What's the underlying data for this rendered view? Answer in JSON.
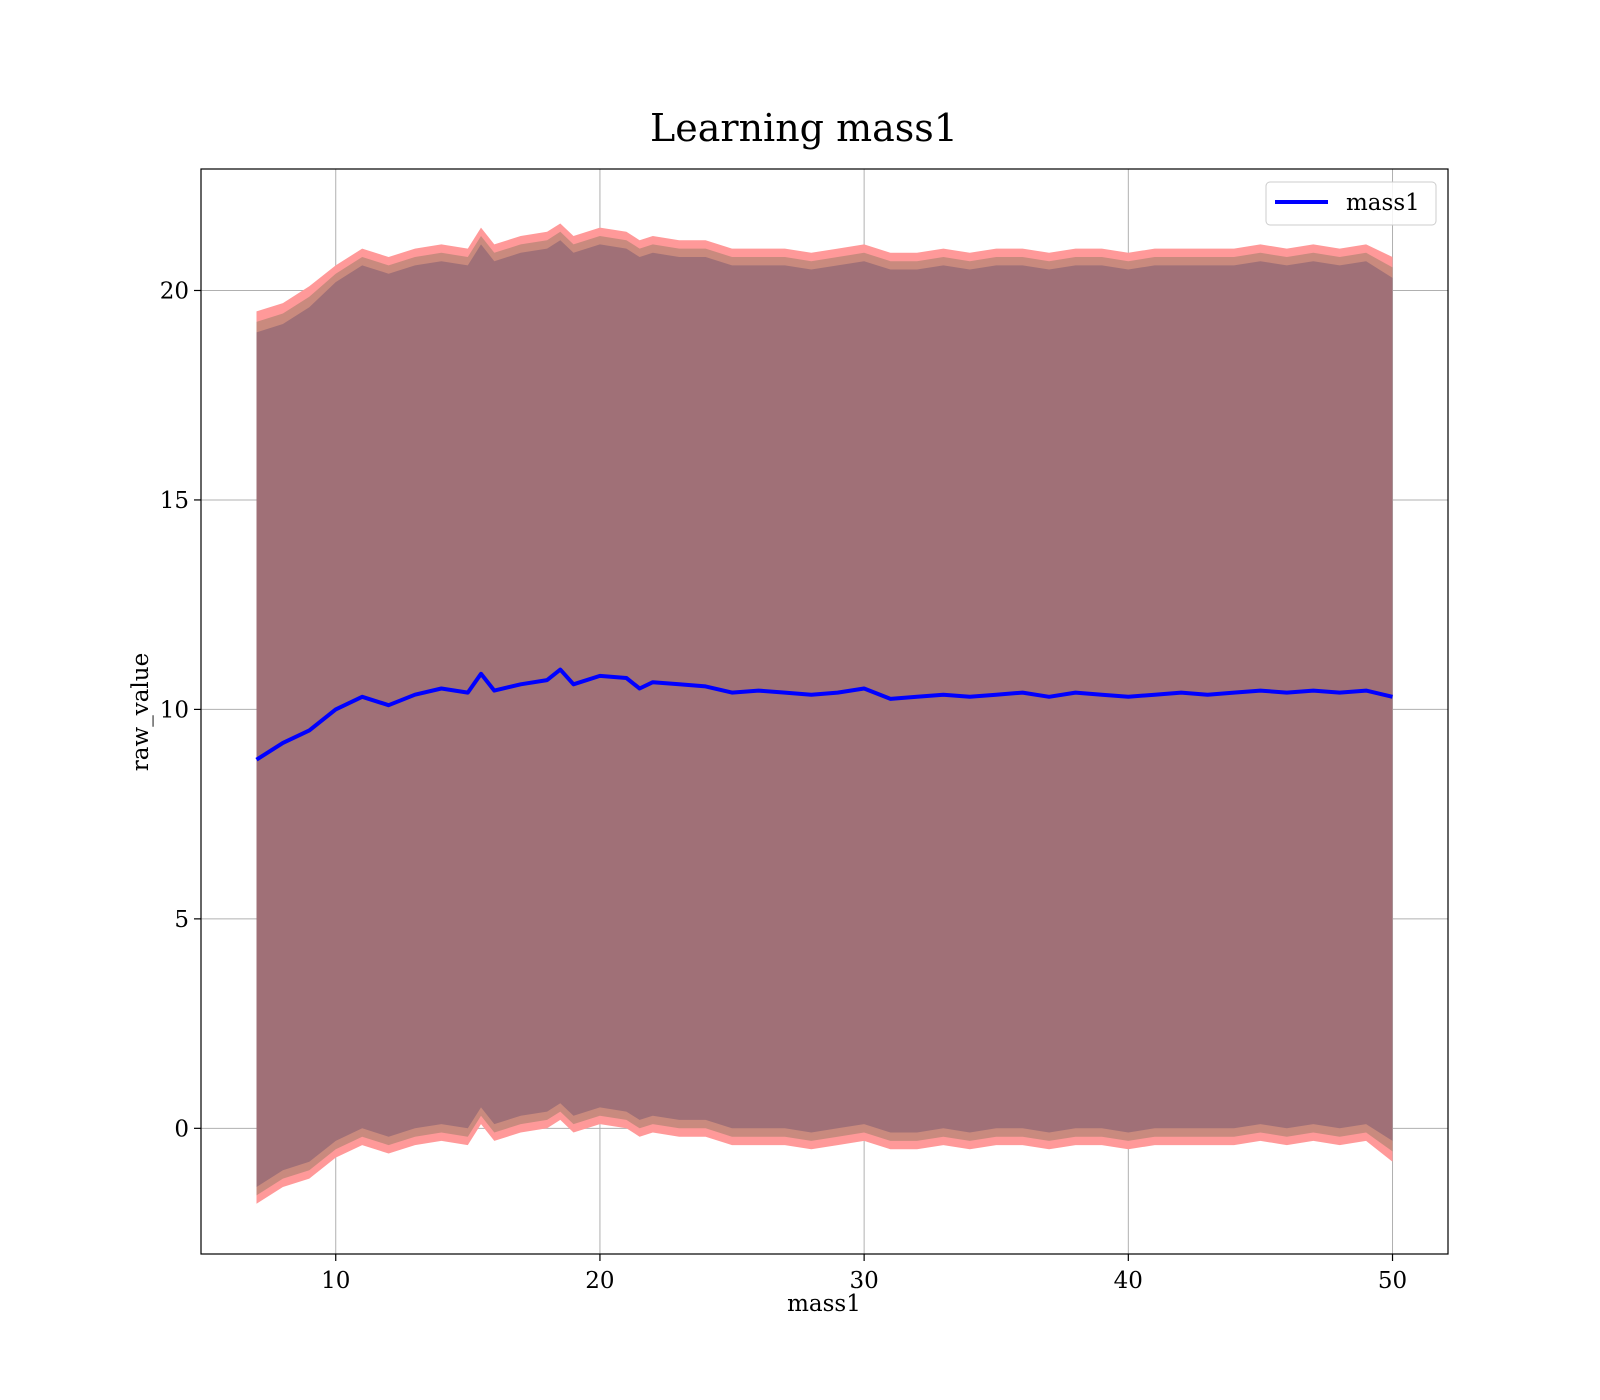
{
  "chart_data": {
    "type": "line",
    "title": "Learning mass1",
    "xlabel": "mass1",
    "ylabel": "raw_value",
    "xlim": [
      4.9,
      52.1
    ],
    "ylim": [
      -3.0,
      22.9
    ],
    "xticks": [
      10,
      20,
      30,
      40,
      50
    ],
    "yticks": [
      0,
      5,
      10,
      15,
      20
    ],
    "grid": true,
    "legend": {
      "placement": "top-right",
      "entries": [
        "mass1"
      ]
    },
    "colors": {
      "line": "#0000ff",
      "band_outer": "#ff9999",
      "band_middle": "#c98a7e",
      "band_inner": "#a07077",
      "grid": "#b0b0b0"
    },
    "series": [
      {
        "name": "mass1",
        "x": [
          7.0,
          8.0,
          9.0,
          10.0,
          11.0,
          12.0,
          13.0,
          14.0,
          15.0,
          15.5,
          16.0,
          17.0,
          18.0,
          18.5,
          19.0,
          20.0,
          21.0,
          21.5,
          22.0,
          23.0,
          24.0,
          25.0,
          26.0,
          27.0,
          28.0,
          29.0,
          30.0,
          31.0,
          32.0,
          33.0,
          34.0,
          35.0,
          36.0,
          37.0,
          38.0,
          39.0,
          40.0,
          41.0,
          42.0,
          43.0,
          44.0,
          45.0,
          46.0,
          47.0,
          48.0,
          49.0,
          50.0
        ],
        "y": [
          8.8,
          9.2,
          9.5,
          10.0,
          10.3,
          10.1,
          10.35,
          10.5,
          10.4,
          10.85,
          10.45,
          10.6,
          10.7,
          10.95,
          10.6,
          10.8,
          10.75,
          10.5,
          10.65,
          10.6,
          10.55,
          10.4,
          10.45,
          10.4,
          10.35,
          10.4,
          10.5,
          10.25,
          10.3,
          10.35,
          10.3,
          10.35,
          10.4,
          10.3,
          10.4,
          10.35,
          10.3,
          10.35,
          10.4,
          10.35,
          10.4,
          10.45,
          10.4,
          10.45,
          10.4,
          10.45,
          10.3
        ],
        "band_outer_upper": [
          19.5,
          19.7,
          20.1,
          20.6,
          21.0,
          20.8,
          21.0,
          21.1,
          21.0,
          21.5,
          21.1,
          21.3,
          21.4,
          21.6,
          21.3,
          21.5,
          21.4,
          21.2,
          21.3,
          21.2,
          21.2,
          21.0,
          21.0,
          21.0,
          20.9,
          21.0,
          21.1,
          20.9,
          20.9,
          21.0,
          20.9,
          21.0,
          21.0,
          20.9,
          21.0,
          21.0,
          20.9,
          21.0,
          21.0,
          21.0,
          21.0,
          21.1,
          21.0,
          21.1,
          21.0,
          21.1,
          20.8
        ],
        "band_inner_upper": [
          19.0,
          19.2,
          19.6,
          20.2,
          20.6,
          20.4,
          20.6,
          20.7,
          20.6,
          21.1,
          20.7,
          20.9,
          21.0,
          21.2,
          20.9,
          21.1,
          21.0,
          20.8,
          20.9,
          20.8,
          20.8,
          20.6,
          20.6,
          20.6,
          20.5,
          20.6,
          20.7,
          20.5,
          20.5,
          20.6,
          20.5,
          20.6,
          20.6,
          20.5,
          20.6,
          20.6,
          20.5,
          20.6,
          20.6,
          20.6,
          20.6,
          20.7,
          20.6,
          20.7,
          20.6,
          20.7,
          20.3
        ],
        "band_inner_lower": [
          -1.4,
          -1.0,
          -0.8,
          -0.3,
          0.0,
          -0.2,
          0.0,
          0.1,
          0.0,
          0.5,
          0.1,
          0.3,
          0.4,
          0.6,
          0.3,
          0.5,
          0.4,
          0.2,
          0.3,
          0.2,
          0.2,
          0.0,
          0.0,
          0.0,
          -0.1,
          0.0,
          0.1,
          -0.1,
          -0.1,
          0.0,
          -0.1,
          0.0,
          0.0,
          -0.1,
          0.0,
          0.0,
          -0.1,
          0.0,
          0.0,
          0.0,
          0.0,
          0.1,
          0.0,
          0.1,
          0.0,
          0.1,
          -0.3
        ],
        "band_outer_lower": [
          -1.8,
          -1.4,
          -1.2,
          -0.7,
          -0.4,
          -0.6,
          -0.4,
          -0.3,
          -0.4,
          0.1,
          -0.3,
          -0.1,
          0.0,
          0.2,
          -0.1,
          0.1,
          0.0,
          -0.2,
          -0.1,
          -0.2,
          -0.2,
          -0.4,
          -0.4,
          -0.4,
          -0.5,
          -0.4,
          -0.3,
          -0.5,
          -0.5,
          -0.4,
          -0.5,
          -0.4,
          -0.4,
          -0.5,
          -0.4,
          -0.4,
          -0.5,
          -0.4,
          -0.4,
          -0.4,
          -0.4,
          -0.3,
          -0.4,
          -0.3,
          -0.4,
          -0.3,
          -0.8
        ]
      }
    ]
  }
}
